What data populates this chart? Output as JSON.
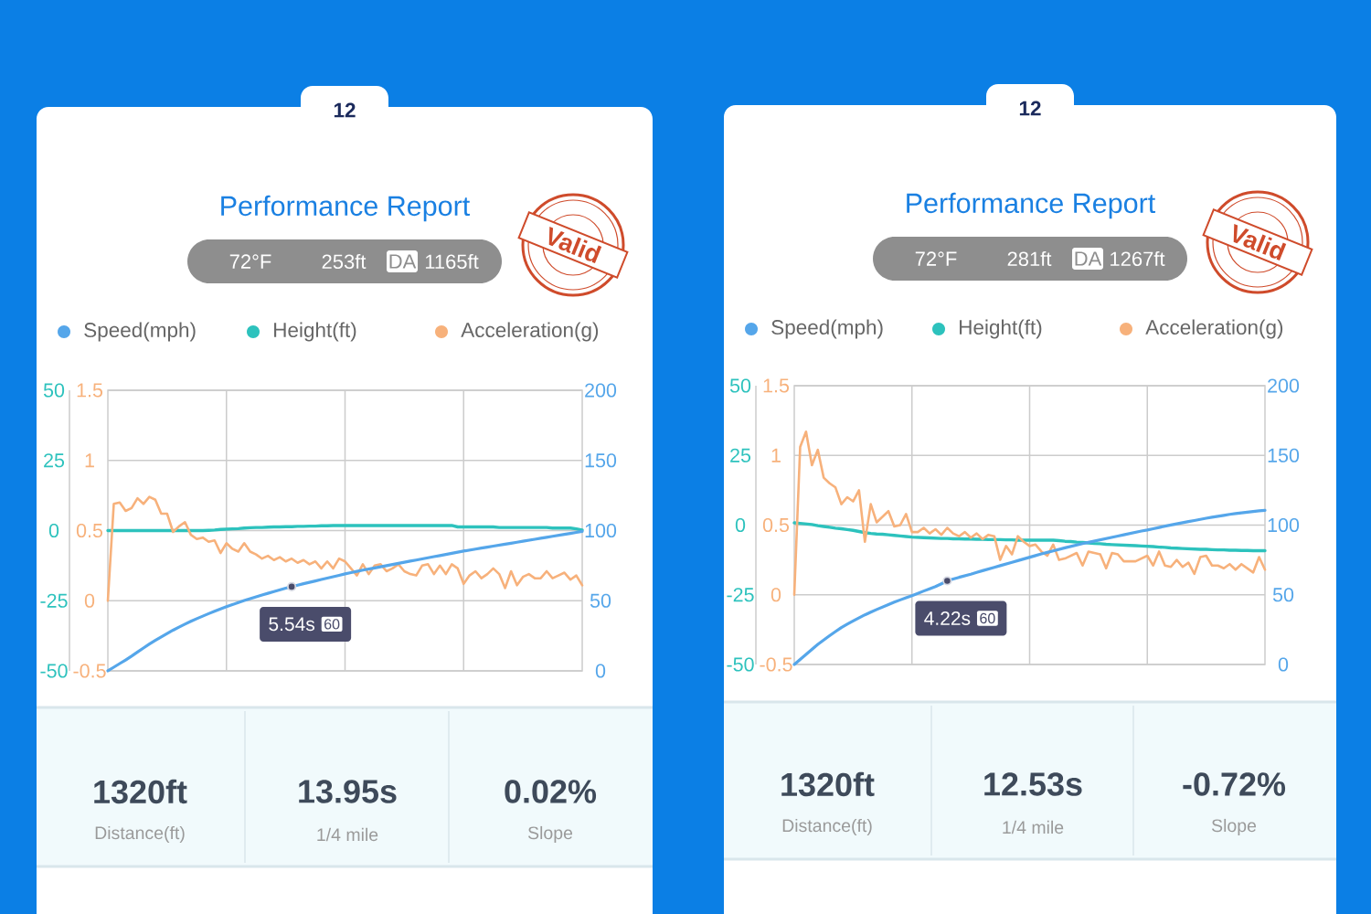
{
  "chart_data": [
    {
      "type": "line",
      "title": "Performance Report",
      "categories": [
        null,
        null,
        null,
        null,
        null,
        null,
        null,
        null,
        null,
        null,
        null,
        null,
        null,
        null,
        null,
        null,
        null,
        null,
        null,
        null,
        null,
        null,
        null,
        null,
        null,
        null,
        null,
        null,
        null,
        null,
        null,
        null,
        null,
        null,
        null,
        null,
        null,
        null,
        null,
        null,
        null,
        null,
        null,
        null,
        null,
        null,
        null,
        null,
        null,
        null,
        null,
        null,
        null,
        null,
        null,
        null,
        null,
        null,
        null,
        null,
        null,
        null,
        null,
        null,
        null,
        null,
        null,
        null,
        null,
        null,
        null,
        null,
        null,
        null,
        null,
        null,
        null,
        null,
        null,
        null,
        null
      ],
      "series": [
        {
          "name": "Speed(mph)",
          "color": "#55a6ea",
          "values": [
            0,
            2.6,
            5.2,
            7.8,
            10.5,
            13.4,
            16.3,
            19.1,
            21.7,
            24.2,
            26.6,
            29.0,
            31.2,
            33.3,
            35.3,
            37.2,
            39.0,
            40.8,
            42.5,
            44.1,
            45.7,
            47.2,
            48.7,
            50.1,
            51.5,
            52.8,
            54.1,
            55.3,
            56.5,
            57.7,
            58.9,
            60.0,
            61.1,
            62.1,
            63.1,
            64.1,
            65.1,
            66.1,
            67.1,
            68.1,
            69.1,
            70.0,
            70.9,
            71.8,
            72.6,
            73.4,
            74.2,
            75.0,
            75.8,
            76.6,
            77.4,
            78.2,
            79.0,
            79.8,
            80.6,
            81.4,
            82.2,
            83.0,
            83.8,
            84.6,
            85.4,
            86.1,
            86.8,
            87.5,
            88.2,
            88.9,
            89.6,
            90.3,
            91.0,
            91.7,
            92.4,
            93.1,
            93.8,
            94.5,
            95.2,
            95.9,
            96.6,
            97.3,
            98.0,
            98.7,
            99.4
          ]
        },
        {
          "name": "Height(ft)",
          "color": "#2dc2bd",
          "axis": "y2",
          "values": [
            0,
            0,
            0,
            0,
            0,
            0,
            0,
            0,
            0,
            0,
            0,
            0,
            0,
            0,
            0,
            0,
            0,
            0.1,
            0.2,
            0.4,
            0.5,
            0.6,
            0.7,
            0.9,
            1.0,
            1.1,
            1.1,
            1.2,
            1.3,
            1.3,
            1.4,
            1.4,
            1.5,
            1.5,
            1.6,
            1.6,
            1.7,
            1.7,
            1.8,
            1.8,
            1.8,
            1.8,
            1.8,
            1.8,
            1.8,
            1.8,
            1.8,
            1.8,
            1.8,
            1.8,
            1.8,
            1.8,
            1.8,
            1.8,
            1.8,
            1.8,
            1.8,
            1.8,
            1.8,
            1.3,
            1.3,
            1.3,
            1.3,
            1.3,
            1.3,
            1.3,
            1.1,
            1.1,
            1.1,
            1.1,
            1.1,
            1.1,
            1.1,
            1.1,
            1.1,
            0.9,
            0.9,
            0.9,
            0.9,
            0.6,
            0.2
          ]
        },
        {
          "name": "Acceleration(g)",
          "color": "#f7b17b",
          "axis": "y3",
          "values": [
            0,
            0.69,
            0.7,
            0.64,
            0.66,
            0.73,
            0.69,
            0.74,
            0.72,
            0.62,
            0.62,
            0.49,
            0.53,
            0.56,
            0.47,
            0.44,
            0.45,
            0.42,
            0.43,
            0.34,
            0.41,
            0.37,
            0.35,
            0.41,
            0.35,
            0.33,
            0.3,
            0.32,
            0.29,
            0.31,
            0.28,
            0.3,
            0.27,
            0.29,
            0.26,
            0.28,
            0.23,
            0.28,
            0.23,
            0.3,
            0.28,
            0.23,
            0.18,
            0.26,
            0.19,
            0.25,
            0.26,
            0.21,
            0.23,
            0.26,
            0.21,
            0.19,
            0.18,
            0.25,
            0.26,
            0.19,
            0.25,
            0.19,
            0.26,
            0.23,
            0.12,
            0.18,
            0.21,
            0.16,
            0.19,
            0.23,
            0.19,
            0.09,
            0.21,
            0.11,
            0.17,
            0.19,
            0.16,
            0.16,
            0.21,
            0.16,
            0.18,
            0.2,
            0.15,
            0.18,
            0.11
          ]
        }
      ],
      "ylim": [
        0,
        200
      ],
      "yticks": [
        0,
        50,
        100,
        150,
        200
      ],
      "y2lim": [
        -50,
        50
      ],
      "y2ticks": [
        -50,
        -25,
        0,
        25,
        50
      ],
      "y3lim": [
        -0.5,
        1.5
      ],
      "y3ticks": [
        -0.5,
        0,
        0.5,
        1,
        1.5
      ],
      "grid": true,
      "legend": "top",
      "annotations": [
        "12",
        "72°F",
        "253ft",
        "DA",
        "1165ft",
        "Valid",
        "1320ft",
        "Distance(ft)",
        "13.95s",
        "1/4 mile",
        "0.02%",
        "Slope",
        {
          "text": "5.54s",
          "y": 60
        },
        "60"
      ]
    },
    {
      "type": "line",
      "title": "Performance Report",
      "categories": [
        null,
        null,
        null,
        null,
        null,
        null,
        null,
        null,
        null,
        null,
        null,
        null,
        null,
        null,
        null,
        null,
        null,
        null,
        null,
        null,
        null,
        null,
        null,
        null,
        null,
        null,
        null,
        null,
        null,
        null,
        null,
        null,
        null,
        null,
        null,
        null,
        null,
        null,
        null,
        null,
        null,
        null,
        null,
        null,
        null,
        null,
        null,
        null,
        null,
        null,
        null,
        null,
        null,
        null,
        null,
        null,
        null,
        null,
        null,
        null,
        null,
        null,
        null,
        null,
        null,
        null,
        null,
        null,
        null,
        null,
        null,
        null,
        null,
        null,
        null,
        null,
        null,
        null,
        null,
        null,
        null
      ],
      "series": [
        {
          "name": "Speed(mph)",
          "color": "#55a6ea",
          "values": [
            0,
            3.6,
            7.2,
            10.8,
            14.4,
            17.5,
            20.6,
            23.6,
            26.5,
            28.9,
            31.2,
            33.4,
            35.6,
            37.5,
            39.4,
            41.2,
            43.0,
            44.7,
            46.3,
            47.9,
            49.4,
            51.0,
            52.7,
            54.3,
            55.9,
            57.9,
            60.0,
            61.3,
            62.5,
            63.6,
            64.7,
            66.0,
            67.3,
            68.5,
            69.7,
            70.9,
            72.1,
            73.3,
            74.5,
            75.7,
            76.9,
            78.1,
            79.3,
            80.4,
            81.5,
            82.6,
            83.7,
            84.7,
            85.7,
            86.7,
            87.6,
            88.5,
            89.4,
            90.3,
            91.2,
            92.1,
            93.0,
            93.9,
            94.8,
            95.7,
            96.5,
            97.4,
            98.3,
            99.2,
            100.1,
            100.9,
            101.7,
            102.5,
            103.3,
            104.1,
            104.9,
            105.6,
            106.3,
            107.0,
            107.7,
            108.3,
            108.8,
            109.3,
            109.8,
            110.2,
            110.6
          ]
        },
        {
          "name": "Height(ft)",
          "color": "#2dc2bd",
          "axis": "y2",
          "values": [
            0.8,
            0.6,
            0.4,
            0.2,
            -0.2,
            -0.5,
            -0.8,
            -1.1,
            -1.3,
            -1.6,
            -1.9,
            -2.3,
            -2.7,
            -3.0,
            -3.2,
            -3.3,
            -3.5,
            -3.7,
            -3.9,
            -4.1,
            -4.3,
            -4.4,
            -4.5,
            -4.6,
            -4.7,
            -4.8,
            -4.8,
            -4.9,
            -4.9,
            -5.0,
            -5.0,
            -5.1,
            -5.1,
            -5.2,
            -5.2,
            -5.2,
            -5.3,
            -5.3,
            -5.4,
            -5.4,
            -5.4,
            -5.4,
            -5.4,
            -5.4,
            -5.4,
            -5.6,
            -5.8,
            -5.9,
            -6.1,
            -6.2,
            -6.4,
            -6.6,
            -6.7,
            -6.9,
            -7.0,
            -7.1,
            -7.2,
            -7.3,
            -7.4,
            -7.5,
            -7.6,
            -7.7,
            -7.9,
            -8.0,
            -8.2,
            -8.3,
            -8.4,
            -8.5,
            -8.6,
            -8.7,
            -8.7,
            -8.8,
            -8.9,
            -8.9,
            -9.0,
            -9.0,
            -9.1,
            -9.1,
            -9.2,
            -9.2,
            -9.2
          ]
        },
        {
          "name": "Acceleration(g)",
          "color": "#f7b17b",
          "axis": "y3",
          "values": [
            0,
            1.06,
            1.17,
            0.93,
            1.04,
            0.84,
            0.8,
            0.77,
            0.65,
            0.7,
            0.67,
            0.75,
            0.38,
            0.65,
            0.52,
            0.56,
            0.6,
            0.49,
            0.5,
            0.58,
            0.45,
            0.45,
            0.48,
            0.44,
            0.47,
            0.43,
            0.48,
            0.44,
            0.42,
            0.45,
            0.41,
            0.44,
            0.4,
            0.43,
            0.42,
            0.25,
            0.35,
            0.29,
            0.42,
            0.38,
            0.35,
            0.36,
            0.31,
            0.28,
            0.36,
            0.25,
            0.26,
            0.28,
            0.3,
            0.21,
            0.31,
            0.3,
            0.29,
            0.19,
            0.3,
            0.29,
            0.24,
            0.24,
            0.24,
            0.26,
            0.28,
            0.21,
            0.31,
            0.21,
            0.2,
            0.25,
            0.2,
            0.23,
            0.15,
            0.27,
            0.28,
            0.21,
            0.21,
            0.19,
            0.22,
            0.18,
            0.22,
            0.19,
            0.16,
            0.27,
            0.18
          ]
        }
      ],
      "ylim": [
        0,
        200
      ],
      "yticks": [
        0,
        50,
        100,
        150,
        200
      ],
      "y2lim": [
        -50,
        50
      ],
      "y2ticks": [
        -50,
        -25,
        0,
        25,
        50
      ],
      "y3lim": [
        -0.5,
        1.5
      ],
      "y3ticks": [
        -0.5,
        0,
        0.5,
        1,
        1.5
      ],
      "grid": true,
      "legend": "top",
      "annotations": [
        "12",
        "72°F",
        "281ft",
        "DA",
        "1267ft",
        "Valid",
        "1320ft",
        "Distance(ft)",
        "12.53s",
        "1/4 mile",
        "-0.72%",
        "Slope",
        {
          "text": "4.22s",
          "y": 60
        },
        "60"
      ]
    }
  ]
}
